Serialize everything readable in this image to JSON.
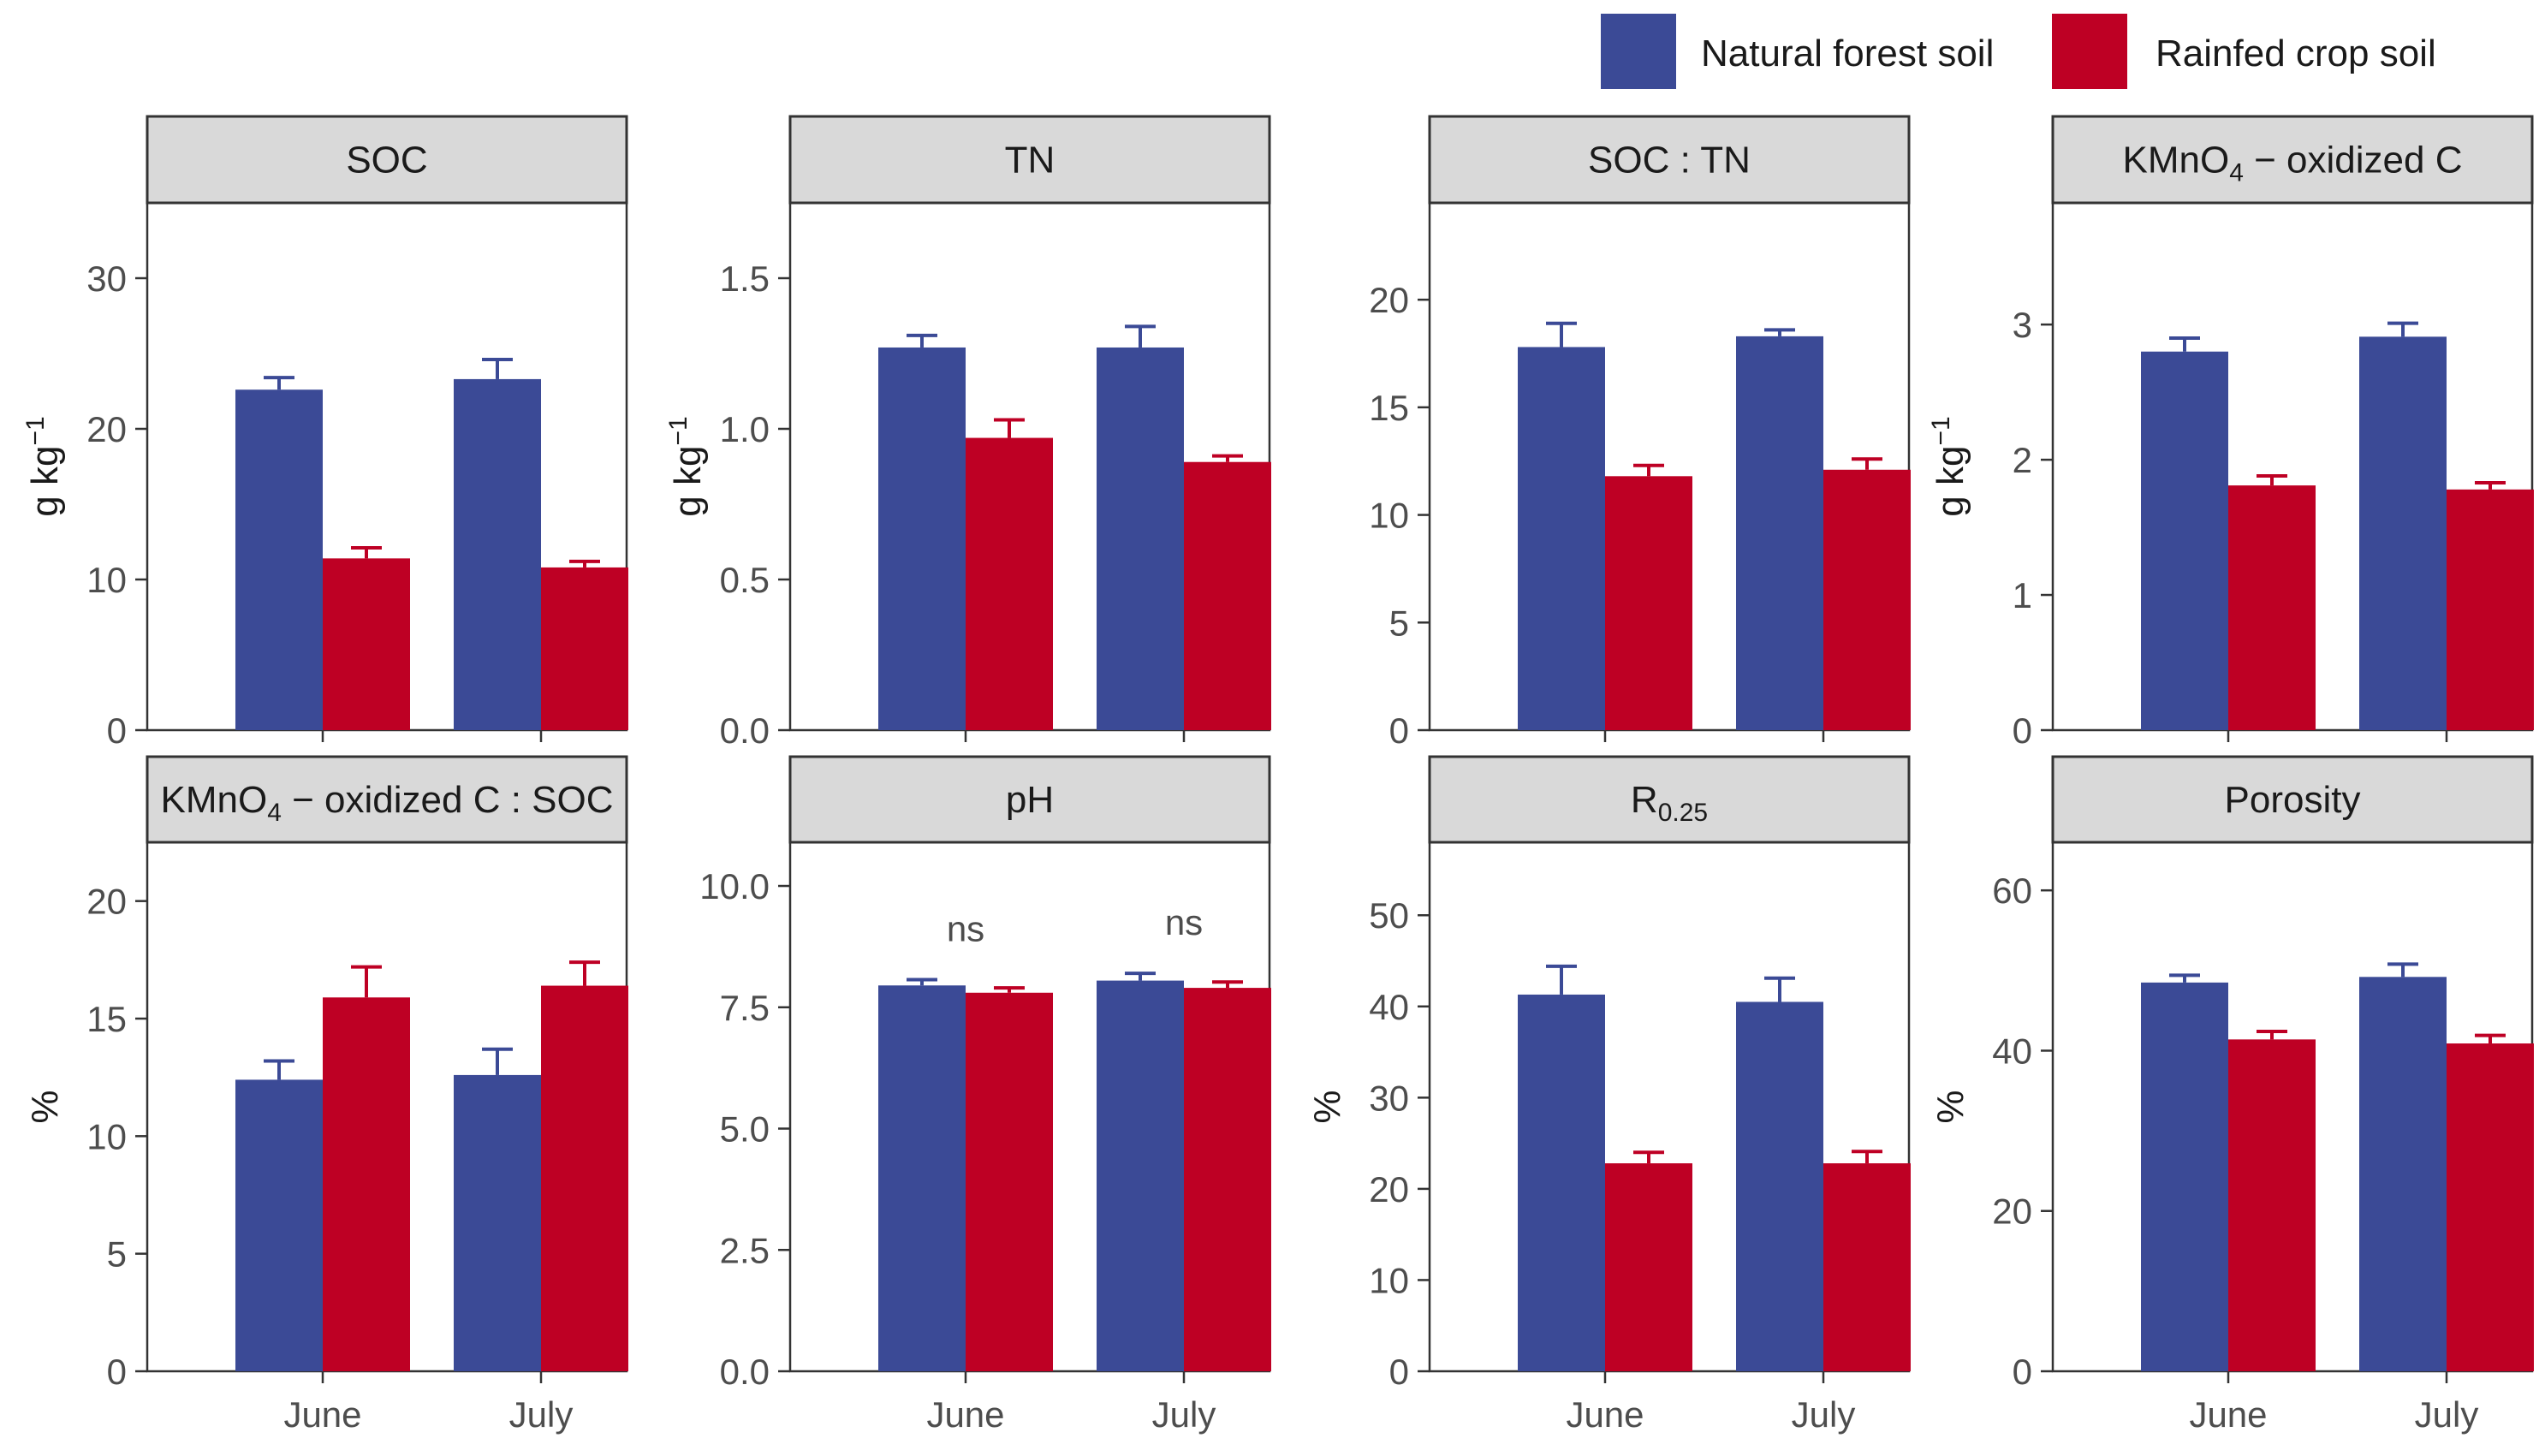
{
  "colors": {
    "natural": "#3b4a96",
    "rainfed": "#be0024",
    "strip_bg": "#d9d9d9",
    "axis": "#333333"
  },
  "legend": [
    {
      "key": "natural",
      "label": "Natural forest soil"
    },
    {
      "key": "rainfed",
      "label": "Rainfed crop soil"
    }
  ],
  "chart_data": [
    {
      "type": "bar",
      "title": "SOC",
      "title_parts": [
        {
          "t": "SOC"
        }
      ],
      "ylabel": "g kg",
      "ylabel_sup": "−1",
      "ylim": [
        0,
        35
      ],
      "yticks": [
        "0",
        "10",
        "20",
        "30"
      ],
      "categories": [
        "June",
        "July"
      ],
      "series": [
        {
          "name": "Natural forest soil",
          "values": [
            22.6,
            23.3
          ],
          "errors": [
            0.8,
            1.3
          ]
        },
        {
          "name": "Rainfed crop soil",
          "values": [
            11.4,
            10.8
          ],
          "errors": [
            0.7,
            0.4
          ]
        }
      ],
      "annotations": []
    },
    {
      "type": "bar",
      "title": "TN",
      "title_parts": [
        {
          "t": "TN"
        }
      ],
      "ylabel": "g kg",
      "ylabel_sup": "−1",
      "ylim": [
        0,
        1.75
      ],
      "yticks": [
        "0.0",
        "0.5",
        "1.0",
        "1.5"
      ],
      "categories": [
        "June",
        "July"
      ],
      "series": [
        {
          "name": "Natural forest soil",
          "values": [
            1.27,
            1.27
          ],
          "errors": [
            0.04,
            0.07
          ]
        },
        {
          "name": "Rainfed crop soil",
          "values": [
            0.97,
            0.89
          ],
          "errors": [
            0.06,
            0.02
          ]
        }
      ],
      "annotations": []
    },
    {
      "type": "bar",
      "title": "SOC : TN",
      "title_parts": [
        {
          "t": "SOC : TN"
        }
      ],
      "ylabel": "",
      "ylabel_sup": "",
      "ylim": [
        0,
        24.5
      ],
      "yticks": [
        "0",
        "5",
        "10",
        "15",
        "20"
      ],
      "categories": [
        "June",
        "July"
      ],
      "series": [
        {
          "name": "Natural forest soil",
          "values": [
            17.8,
            18.3
          ],
          "errors": [
            1.1,
            0.3
          ]
        },
        {
          "name": "Rainfed crop soil",
          "values": [
            11.8,
            12.1
          ],
          "errors": [
            0.5,
            0.5
          ]
        }
      ],
      "annotations": []
    },
    {
      "type": "bar",
      "title": "KMnO4 − oxidized C",
      "title_parts": [
        {
          "t": "KMnO"
        },
        {
          "t": "4",
          "sub": true
        },
        {
          "t": " − oxidized C"
        }
      ],
      "ylabel": "g kg",
      "ylabel_sup": "−1",
      "ylim": [
        0,
        3.9
      ],
      "yticks": [
        "0",
        "1",
        "2",
        "3"
      ],
      "categories": [
        "June",
        "July"
      ],
      "series": [
        {
          "name": "Natural forest soil",
          "values": [
            2.8,
            2.91
          ],
          "errors": [
            0.1,
            0.1
          ]
        },
        {
          "name": "Rainfed crop soil",
          "values": [
            1.81,
            1.78
          ],
          "errors": [
            0.07,
            0.05
          ]
        }
      ],
      "annotations": []
    },
    {
      "type": "bar",
      "title": "KMnO4 − oxidized C : SOC",
      "title_parts": [
        {
          "t": "KMnO"
        },
        {
          "t": "4",
          "sub": true
        },
        {
          "t": " − oxidized C : SOC"
        }
      ],
      "ylabel": "%",
      "ylabel_sup": "",
      "ylim": [
        0,
        22.5
      ],
      "yticks": [
        "0",
        "5",
        "10",
        "15",
        "20"
      ],
      "categories": [
        "June",
        "July"
      ],
      "series": [
        {
          "name": "Natural forest soil",
          "values": [
            12.4,
            12.6
          ],
          "errors": [
            0.8,
            1.1
          ]
        },
        {
          "name": "Rainfed crop soil",
          "values": [
            15.9,
            16.4
          ],
          "errors": [
            1.3,
            1.0
          ]
        }
      ],
      "annotations": []
    },
    {
      "type": "bar",
      "title": "pH",
      "title_parts": [
        {
          "t": "pH"
        }
      ],
      "ylabel": "",
      "ylabel_sup": "",
      "ylim": [
        0,
        10.9
      ],
      "yticks": [
        "0.0",
        "2.5",
        "5.0",
        "7.5",
        "10.0"
      ],
      "categories": [
        "June",
        "July"
      ],
      "series": [
        {
          "name": "Natural forest soil",
          "values": [
            7.95,
            8.05
          ],
          "errors": [
            0.12,
            0.15
          ]
        },
        {
          "name": "Rainfed crop soil",
          "values": [
            7.8,
            7.9
          ],
          "errors": [
            0.1,
            0.12
          ]
        }
      ],
      "annotations": [
        {
          "category": "June",
          "text": "ns"
        },
        {
          "category": "July",
          "text": "ns"
        }
      ]
    },
    {
      "type": "bar",
      "title": "R0.25",
      "title_parts": [
        {
          "t": "R"
        },
        {
          "t": "0.25",
          "sub": true
        }
      ],
      "ylabel": "%",
      "ylabel_sup": "",
      "ylim": [
        0,
        58
      ],
      "yticks": [
        "0",
        "10",
        "20",
        "30",
        "40",
        "50"
      ],
      "categories": [
        "June",
        "July"
      ],
      "series": [
        {
          "name": "Natural forest soil",
          "values": [
            41.3,
            40.5
          ],
          "errors": [
            3.1,
            2.6
          ]
        },
        {
          "name": "Rainfed crop soil",
          "values": [
            22.8,
            22.8
          ],
          "errors": [
            1.2,
            1.3
          ]
        }
      ],
      "annotations": []
    },
    {
      "type": "bar",
      "title": "Porosity",
      "title_parts": [
        {
          "t": "Porosity"
        }
      ],
      "ylabel": "%",
      "ylabel_sup": "",
      "ylim": [
        0,
        66
      ],
      "yticks": [
        "0",
        "20",
        "40",
        "60"
      ],
      "categories": [
        "June",
        "July"
      ],
      "series": [
        {
          "name": "Natural forest soil",
          "values": [
            48.5,
            49.2
          ],
          "errors": [
            0.9,
            1.6
          ]
        },
        {
          "name": "Rainfed crop soil",
          "values": [
            41.4,
            40.9
          ],
          "errors": [
            1.0,
            1.0
          ]
        }
      ],
      "annotations": []
    }
  ]
}
